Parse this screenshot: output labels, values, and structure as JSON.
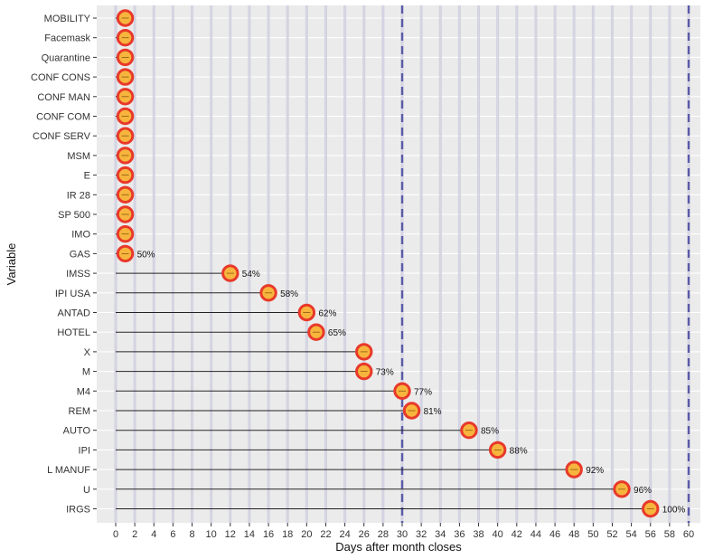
{
  "chart_data": {
    "type": "lollipop",
    "xlabel": "Days after month closes",
    "ylabel": "Variable",
    "xlim": [
      0,
      60
    ],
    "x_ticks": [
      0,
      2,
      4,
      6,
      8,
      10,
      12,
      14,
      16,
      18,
      20,
      22,
      24,
      26,
      28,
      30,
      32,
      34,
      36,
      38,
      40,
      42,
      44,
      46,
      48,
      50,
      52,
      54,
      56,
      58,
      60
    ],
    "reference_lines": [
      30,
      60
    ],
    "grid": true,
    "rows": [
      {
        "label": "MOBILITY",
        "x": 1,
        "pct": ""
      },
      {
        "label": "Facemask",
        "x": 1,
        "pct": ""
      },
      {
        "label": "Quarantine",
        "x": 1,
        "pct": ""
      },
      {
        "label": "CONF CONS",
        "x": 1,
        "pct": ""
      },
      {
        "label": "CONF MAN",
        "x": 1,
        "pct": ""
      },
      {
        "label": "CONF COM",
        "x": 1,
        "pct": ""
      },
      {
        "label": "CONF SERV",
        "x": 1,
        "pct": ""
      },
      {
        "label": "MSM",
        "x": 1,
        "pct": ""
      },
      {
        "label": "E",
        "x": 1,
        "pct": ""
      },
      {
        "label": "IR 28",
        "x": 1,
        "pct": ""
      },
      {
        "label": "SP 500",
        "x": 1,
        "pct": ""
      },
      {
        "label": "IMO",
        "x": 1,
        "pct": ""
      },
      {
        "label": "GAS",
        "x": 1,
        "pct": "50%"
      },
      {
        "label": "IMSS",
        "x": 12,
        "pct": "54%"
      },
      {
        "label": "IPI USA",
        "x": 16,
        "pct": "58%"
      },
      {
        "label": "ANTAD",
        "x": 20,
        "pct": "62%"
      },
      {
        "label": "HOTEL",
        "x": 21,
        "pct": "65%"
      },
      {
        "label": "X",
        "x": 26,
        "pct": ""
      },
      {
        "label": "M",
        "x": 26,
        "pct": "73%"
      },
      {
        "label": "M4",
        "x": 30,
        "pct": "77%"
      },
      {
        "label": "REM",
        "x": 31,
        "pct": "81%"
      },
      {
        "label": "AUTO",
        "x": 37,
        "pct": "85%"
      },
      {
        "label": "IPI",
        "x": 40,
        "pct": "88%"
      },
      {
        "label": "L MANUF",
        "x": 48,
        "pct": "92%"
      },
      {
        "label": "U",
        "x": 53,
        "pct": "96%"
      },
      {
        "label": "IRGS",
        "x": 56,
        "pct": "100%"
      }
    ],
    "colors": {
      "panel": "#ebebeb",
      "grid_major": "#ffffff",
      "grid_day_band": "#c9c9dd",
      "reference_line": "#5a5aa8",
      "segment": "#222222",
      "marker_fill": "#f7b53d",
      "marker_stroke": "#e8392a"
    }
  }
}
